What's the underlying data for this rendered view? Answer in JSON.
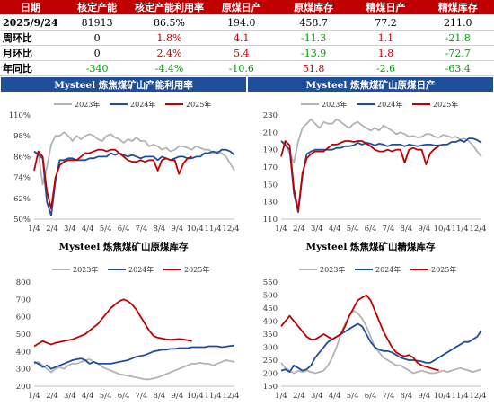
{
  "table": {
    "headers": [
      "日期",
      "核定产能",
      "核定产能利用率",
      "原煤日产",
      "原煤库存",
      "精煤日产",
      "精煤库存"
    ],
    "rows": [
      {
        "label": "2025/9/24",
        "cells": [
          {
            "v": "81913",
            "c": "neutral"
          },
          {
            "v": "86.5%",
            "c": "neutral"
          },
          {
            "v": "194.0",
            "c": "neutral"
          },
          {
            "v": "458.7",
            "c": "neutral"
          },
          {
            "v": "77.2",
            "c": "neutral"
          },
          {
            "v": "211.0",
            "c": "neutral"
          }
        ]
      },
      {
        "label": "周环比",
        "cells": [
          {
            "v": "0",
            "c": "neutral"
          },
          {
            "v": "1.8%",
            "c": "up"
          },
          {
            "v": "4.1",
            "c": "up"
          },
          {
            "v": "-11.3",
            "c": "down"
          },
          {
            "v": "1.1",
            "c": "up"
          },
          {
            "v": "-21.8",
            "c": "down"
          }
        ]
      },
      {
        "label": "月环比",
        "cells": [
          {
            "v": "0",
            "c": "neutral"
          },
          {
            "v": "2.4%",
            "c": "up"
          },
          {
            "v": "5.4",
            "c": "up"
          },
          {
            "v": "-13.9",
            "c": "down"
          },
          {
            "v": "1.8",
            "c": "up"
          },
          {
            "v": "-72.7",
            "c": "down"
          }
        ]
      },
      {
        "label": "年同比",
        "cells": [
          {
            "v": "-340",
            "c": "down"
          },
          {
            "v": "-4.4%",
            "c": "down"
          },
          {
            "v": "-10.6",
            "c": "down"
          },
          {
            "v": "51.8",
            "c": "up"
          },
          {
            "v": "-2.6",
            "c": "down"
          },
          {
            "v": "-63.4",
            "c": "down"
          }
        ]
      }
    ]
  },
  "colors": {
    "up": "#c00000",
    "down": "#00a000",
    "header_bg": "#c00000",
    "banner_bg": "#1f4e9a",
    "s2023": "#b3b3b3",
    "s2024": "#1f4e9a",
    "s2025": "#c00000"
  },
  "chart_data": [
    {
      "type": "line",
      "title": "Mysteel 炼焦煤矿山产能利用率",
      "title_style": "banner",
      "y_ticks": [
        "50%",
        "62%",
        "74%",
        "86%",
        "98%",
        "110%"
      ],
      "ylim": [
        50,
        110
      ],
      "x_ticks": [
        "1/4",
        "2/4",
        "3/4",
        "4/4",
        "5/4",
        "6/4",
        "7/4",
        "8/4",
        "9/4",
        "10/4",
        "11/4",
        "12/4"
      ],
      "series": [
        {
          "name": "2023年",
          "color": "#b3b3b3",
          "values": [
            89,
            88,
            70,
            80,
            93,
            98,
            98,
            100,
            98,
            95,
            98,
            96,
            98,
            99,
            98,
            96,
            95,
            98,
            99,
            97,
            96,
            94,
            96,
            95,
            97,
            95,
            95,
            92,
            93,
            92,
            90,
            91,
            89,
            90,
            92,
            92,
            91,
            90,
            92,
            91,
            90,
            90,
            88,
            89,
            88,
            86,
            82,
            78
          ]
        },
        {
          "name": "2024年",
          "color": "#1f4e9a",
          "values": [
            89,
            87,
            85,
            60,
            52,
            72,
            84,
            84,
            85,
            85,
            84,
            84,
            84,
            85,
            85,
            86,
            86,
            86,
            88,
            87,
            88,
            87,
            86,
            87,
            86,
            85,
            86,
            86,
            86,
            84,
            86,
            85,
            84,
            85,
            86,
            86,
            85,
            85,
            86,
            86,
            88,
            88,
            89,
            88,
            90,
            90,
            89,
            87
          ]
        },
        {
          "name": "2025年",
          "color": "#c00000",
          "values": [
            78,
            89,
            86,
            66,
            56,
            74,
            81,
            83,
            84,
            84,
            84,
            86,
            88,
            88,
            89,
            90,
            90,
            89,
            90,
            90,
            88,
            86,
            84,
            83,
            83,
            84,
            83,
            84,
            84,
            78,
            84,
            85,
            84,
            84,
            76,
            82,
            85,
            86
          ]
        }
      ]
    },
    {
      "type": "line",
      "title": "Mysteel 炼焦煤矿山原煤日产",
      "title_style": "banner",
      "y_ticks": [
        "110",
        "130",
        "150",
        "170",
        "190",
        "210",
        "230"
      ],
      "ylim": [
        110,
        230
      ],
      "x_ticks": [
        "1/4",
        "2/4",
        "3/4",
        "4/4",
        "5/4",
        "6/4",
        "7/4",
        "8/4",
        "9/4",
        "10/4",
        "11/4",
        "12/4"
      ],
      "series": [
        {
          "name": "2023年",
          "color": "#b3b3b3",
          "values": [
            200,
            198,
            185,
            175,
            200,
            215,
            220,
            225,
            220,
            215,
            222,
            220,
            220,
            225,
            222,
            218,
            215,
            220,
            222,
            218,
            215,
            212,
            215,
            212,
            218,
            215,
            212,
            208,
            210,
            208,
            205,
            206,
            204,
            205,
            208,
            208,
            205,
            204,
            207,
            206,
            204,
            205,
            202,
            203,
            200,
            195,
            188,
            182
          ]
        },
        {
          "name": "2024年",
          "color": "#1f4e9a",
          "values": [
            200,
            195,
            190,
            140,
            118,
            160,
            185,
            188,
            190,
            190,
            190,
            190,
            190,
            192,
            192,
            194,
            194,
            195,
            198,
            196,
            198,
            197,
            195,
            197,
            196,
            194,
            196,
            196,
            196,
            194,
            196,
            195,
            194,
            195,
            196,
            196,
            195,
            195,
            196,
            196,
            199,
            199,
            201,
            199,
            203,
            203,
            201,
            198
          ]
        },
        {
          "name": "2025年",
          "color": "#c00000",
          "values": [
            182,
            200,
            195,
            145,
            120,
            163,
            180,
            185,
            188,
            188,
            188,
            192,
            196,
            196,
            198,
            200,
            200,
            199,
            200,
            200,
            197,
            194,
            190,
            188,
            188,
            190,
            188,
            190,
            190,
            175,
            190,
            192,
            190,
            190,
            173,
            186,
            191,
            194
          ]
        }
      ]
    },
    {
      "type": "line",
      "title": "Mysteel 炼焦煤矿山原煤库存",
      "title_style": "plain",
      "y_ticks": [
        "200",
        "300",
        "400",
        "500",
        "600",
        "700",
        "800"
      ],
      "ylim": [
        200,
        800
      ],
      "x_ticks": [
        "1/4",
        "2/4",
        "3/4",
        "4/4",
        "5/4",
        "6/4",
        "7/4",
        "8/4",
        "9/4",
        "10/4",
        "11/4",
        "12/4"
      ],
      "series": [
        {
          "name": "2023年",
          "color": "#b3b3b3",
          "values": [
            330,
            340,
            320,
            300,
            280,
            300,
            310,
            300,
            320,
            330,
            330,
            340,
            350,
            355,
            340,
            330,
            310,
            300,
            290,
            280,
            270,
            265,
            260,
            255,
            250,
            245,
            240,
            240,
            245,
            250,
            260,
            270,
            280,
            290,
            300,
            310,
            320,
            330,
            330,
            335,
            330,
            330,
            320,
            330,
            340,
            350,
            345,
            340
          ]
        },
        {
          "name": "2024年",
          "color": "#1f4e9a",
          "values": [
            340,
            330,
            310,
            320,
            300,
            310,
            320,
            330,
            340,
            350,
            355,
            360,
            350,
            330,
            340,
            330,
            330,
            330,
            330,
            335,
            340,
            345,
            350,
            360,
            370,
            375,
            380,
            390,
            400,
            405,
            410,
            410,
            415,
            415,
            420,
            420,
            420,
            425,
            425,
            425,
            425,
            430,
            430,
            430,
            425,
            428,
            432,
            435
          ]
        },
        {
          "name": "2025年",
          "color": "#c00000",
          "values": [
            430,
            445,
            460,
            450,
            440,
            450,
            455,
            460,
            465,
            470,
            480,
            490,
            500,
            520,
            540,
            560,
            590,
            620,
            650,
            670,
            690,
            700,
            690,
            670,
            640,
            600,
            560,
            520,
            490,
            480,
            475,
            470,
            468,
            470,
            472,
            470,
            465,
            459
          ]
        }
      ]
    },
    {
      "type": "line",
      "title": "Mysteel 炼焦煤矿山精煤库存",
      "title_style": "plain",
      "y_ticks": [
        "150",
        "200",
        "250",
        "300",
        "350",
        "400",
        "450",
        "500",
        "550"
      ],
      "ylim": [
        150,
        550
      ],
      "x_ticks": [
        "1/4",
        "2/4",
        "3/4",
        "4/4",
        "5/4",
        "6/4",
        "7/4",
        "8/4",
        "9/4",
        "10/4",
        "11/4",
        "12/4"
      ],
      "series": [
        {
          "name": "2023年",
          "color": "#b3b3b3",
          "values": [
            240,
            220,
            210,
            200,
            210,
            205,
            210,
            205,
            200,
            205,
            210,
            230,
            260,
            300,
            350,
            390,
            420,
            440,
            430,
            410,
            380,
            340,
            300,
            280,
            260,
            250,
            240,
            230,
            230,
            220,
            210,
            200,
            205,
            210,
            205,
            200,
            200,
            205,
            210,
            205,
            210,
            215,
            220,
            215,
            210,
            205,
            210,
            215
          ]
        },
        {
          "name": "2024年",
          "color": "#1f4e9a",
          "values": [
            210,
            215,
            205,
            230,
            220,
            210,
            215,
            230,
            260,
            280,
            300,
            320,
            330,
            340,
            350,
            360,
            370,
            380,
            390,
            380,
            350,
            320,
            300,
            290,
            285,
            285,
            280,
            270,
            260,
            255,
            250,
            250,
            248,
            245,
            240,
            240,
            250,
            260,
            270,
            280,
            290,
            300,
            310,
            320,
            320,
            330,
            340,
            365
          ]
        },
        {
          "name": "2025年",
          "color": "#c00000",
          "values": [
            380,
            400,
            420,
            400,
            380,
            360,
            340,
            330,
            330,
            340,
            350,
            340,
            330,
            340,
            350,
            380,
            420,
            450,
            480,
            490,
            500,
            480,
            440,
            400,
            360,
            330,
            300,
            280,
            270,
            265,
            270,
            260,
            240,
            230,
            225,
            220,
            215,
            211
          ]
        }
      ]
    }
  ]
}
